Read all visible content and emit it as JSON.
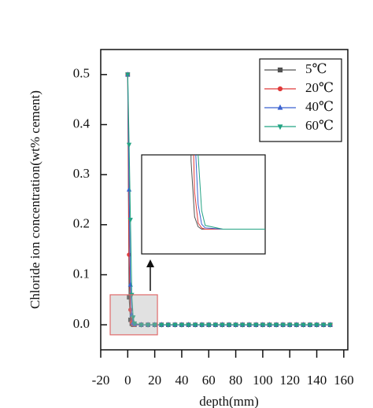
{
  "chart_data": {
    "type": "line",
    "xlabel": "depth(mm)",
    "ylabel": "Chloride ion concentration(wt% cement)",
    "x": [
      0,
      1,
      2,
      3,
      4,
      5,
      10,
      15,
      20,
      25,
      30,
      35,
      40,
      45,
      50,
      55,
      60,
      65,
      70,
      75,
      80,
      85,
      90,
      95,
      100,
      105,
      110,
      115,
      120,
      125,
      130,
      135,
      140,
      145,
      150
    ],
    "series": [
      {
        "name": "5℃",
        "color": "#505050",
        "marker": "square",
        "values": [
          0.5,
          0.055,
          0.01,
          0.002,
          0,
          0,
          0,
          0,
          0,
          0,
          0,
          0,
          0,
          0,
          0,
          0,
          0,
          0,
          0,
          0,
          0,
          0,
          0,
          0,
          0,
          0,
          0,
          0,
          0,
          0,
          0,
          0,
          0,
          0,
          0
        ]
      },
      {
        "name": "20℃",
        "color": "#e03a3a",
        "marker": "circle",
        "values": [
          0.5,
          0.14,
          0.03,
          0.005,
          0.001,
          0,
          0,
          0,
          0,
          0,
          0,
          0,
          0,
          0,
          0,
          0,
          0,
          0,
          0,
          0,
          0,
          0,
          0,
          0,
          0,
          0,
          0,
          0,
          0,
          0,
          0,
          0,
          0,
          0,
          0
        ]
      },
      {
        "name": "40℃",
        "color": "#3a62d0",
        "marker": "triangle-up",
        "values": [
          0.5,
          0.27,
          0.08,
          0.02,
          0.004,
          0.001,
          0,
          0,
          0,
          0,
          0,
          0,
          0,
          0,
          0,
          0,
          0,
          0,
          0,
          0,
          0,
          0,
          0,
          0,
          0,
          0,
          0,
          0,
          0,
          0,
          0,
          0,
          0,
          0,
          0
        ]
      },
      {
        "name": "60℃",
        "color": "#23a383",
        "marker": "triangle-down",
        "values": [
          0.5,
          0.36,
          0.21,
          0.06,
          0.015,
          0.003,
          0,
          0,
          0,
          0,
          0,
          0,
          0,
          0,
          0,
          0,
          0,
          0,
          0,
          0,
          0,
          0,
          0,
          0,
          0,
          0,
          0,
          0,
          0,
          0,
          0,
          0,
          0,
          0,
          0
        ]
      }
    ],
    "xlim": [
      -20,
      163
    ],
    "xticks": [
      -20,
      0,
      20,
      40,
      60,
      80,
      100,
      120,
      140,
      160
    ],
    "ylim": [
      -0.05,
      0.55
    ],
    "yticks": [
      {
        "value": 0,
        "label": "0.0"
      },
      0.1,
      0.2,
      0.3,
      0.4,
      0.5
    ],
    "legend": "upper right",
    "zoom_region": {
      "xlim": [
        -13,
        22
      ],
      "ylim": [
        -0.02,
        0.06
      ]
    }
  }
}
